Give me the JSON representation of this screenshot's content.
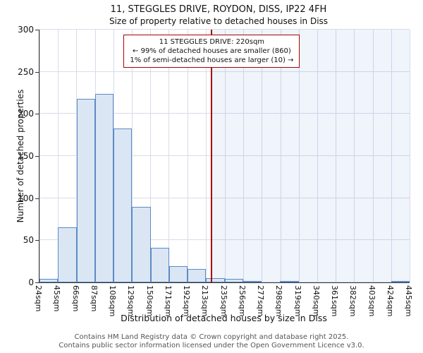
{
  "title": "11, STEGGLES DRIVE, ROYDON, DISS, IP22 4FH",
  "subtitle": "Size of property relative to detached houses in Diss",
  "chart_data": {
    "type": "bar",
    "bin_labels": [
      "24sqm",
      "45sqm",
      "66sqm",
      "87sqm",
      "108sqm",
      "129sqm",
      "150sqm",
      "171sqm",
      "192sqm",
      "213sqm",
      "235sqm",
      "256sqm",
      "277sqm",
      "298sqm",
      "319sqm",
      "340sqm",
      "361sqm",
      "382sqm",
      "403sqm",
      "424sqm",
      "445sqm"
    ],
    "values": [
      4,
      65,
      218,
      224,
      183,
      90,
      41,
      19,
      16,
      5,
      4,
      1,
      0,
      1,
      0,
      0,
      0,
      0,
      0,
      1
    ],
    "title": "11, STEGGLES DRIVE, ROYDON, DISS, IP22 4FH",
    "xlabel": "Distribution of detached houses by size in Diss",
    "ylabel": "Number of detached properties",
    "ylim": [
      0,
      300
    ],
    "yticks": [
      0,
      50,
      100,
      150,
      200,
      250,
      300
    ],
    "grid": "on",
    "bar_fill": "#dbe6f4",
    "bar_stroke": "#5b8ac6",
    "marker": {
      "value_sqm": 220,
      "color": "#aa0000",
      "label_lines": [
        "11 STEGGLES DRIVE: 220sqm",
        "← 99% of detached houses are smaller (860)",
        "1% of semi-detached houses are larger (10) →"
      ]
    }
  },
  "footer": {
    "line1": "Contains HM Land Registry data © Crown copyright and database right 2025.",
    "line2": "Contains public sector information licensed under the Open Government Licence v3.0."
  }
}
